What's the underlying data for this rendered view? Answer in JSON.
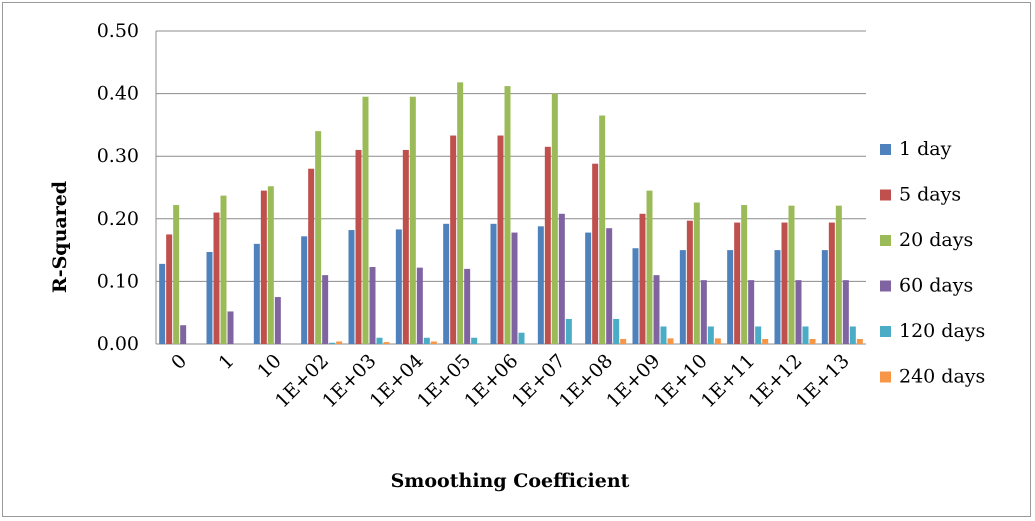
{
  "chart_data": {
    "type": "bar",
    "title": "",
    "xlabel": "Smoothing Coefficient",
    "ylabel": "R-Squared",
    "ylim": [
      0,
      0.5
    ],
    "yticks": [
      "0.00",
      "0.10",
      "0.20",
      "0.30",
      "0.40",
      "0.50"
    ],
    "grid": true,
    "legend_position": "right",
    "categories": [
      "0",
      "1",
      "10",
      "1E+02",
      "1E+03",
      "1E+04",
      "1E+05",
      "1E+06",
      "1E+07",
      "1E+08",
      "1E+09",
      "1E+10",
      "1E+11",
      "1E+12",
      "1E+13"
    ],
    "series": [
      {
        "name": "1 day",
        "color": "#4f81bd",
        "values": [
          0.128,
          0.147,
          0.16,
          0.172,
          0.182,
          0.183,
          0.192,
          0.192,
          0.188,
          0.178,
          0.153,
          0.15,
          0.15,
          0.15,
          0.15
        ]
      },
      {
        "name": "5 days",
        "color": "#c0504d",
        "values": [
          0.175,
          0.21,
          0.245,
          0.28,
          0.31,
          0.31,
          0.333,
          0.333,
          0.315,
          0.288,
          0.208,
          0.197,
          0.194,
          0.194,
          0.194
        ]
      },
      {
        "name": "20 days",
        "color": "#9bbb59",
        "values": [
          0.222,
          0.237,
          0.252,
          0.34,
          0.395,
          0.395,
          0.418,
          0.412,
          0.4,
          0.365,
          0.245,
          0.226,
          0.222,
          0.221,
          0.221
        ]
      },
      {
        "name": "60 days",
        "color": "#8064a2",
        "values": [
          0.03,
          0.052,
          0.075,
          0.11,
          0.123,
          0.122,
          0.12,
          0.178,
          0.208,
          0.185,
          0.11,
          0.102,
          0.102,
          0.102,
          0.102
        ]
      },
      {
        "name": "120 days",
        "color": "#4bacc6",
        "values": [
          0.0,
          0.0,
          0.0,
          0.002,
          0.01,
          0.01,
          0.01,
          0.018,
          0.04,
          0.04,
          0.028,
          0.028,
          0.028,
          0.028,
          0.028
        ]
      },
      {
        "name": "240 days",
        "color": "#f79646",
        "values": [
          0.0,
          0.0,
          0.0,
          0.004,
          0.003,
          0.004,
          0.0,
          0.0,
          0.0,
          0.008,
          0.009,
          0.009,
          0.008,
          0.008,
          0.008
        ]
      }
    ]
  }
}
